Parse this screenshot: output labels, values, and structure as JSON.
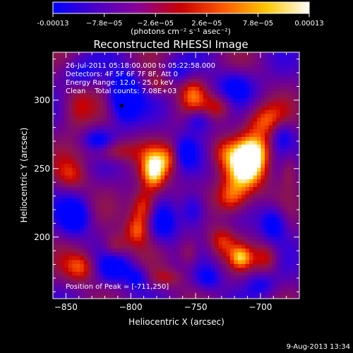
{
  "colorbar": {
    "ticks": [
      "-0.00013",
      "−7.8e−05",
      "−2.6e−05",
      "2.6e−05",
      "7.8e−05",
      "0.00013"
    ],
    "units": "(photons cm⁻² s⁻¹ asec⁻²)",
    "colors": [
      "#0000ff",
      "#4b00c8",
      "#8c0096",
      "#c80000",
      "#ff5a00",
      "#ffc800",
      "#ffffff"
    ]
  },
  "chart_data": {
    "type": "heatmap",
    "title": "Reconstructed RHESSI Image",
    "xlabel": "Heliocentric X (arcsec)",
    "ylabel": "Heliocentric Y (arcsec)",
    "xlim": [
      -860,
      -670
    ],
    "ylim": [
      155,
      335
    ],
    "x_ticks": [
      -850,
      -800,
      -750,
      -700
    ],
    "y_ticks": [
      200,
      250,
      300
    ],
    "info_lines": [
      "26-Jul-2011 05:18:00.000 to 05:22:58.000",
      "Detectors: 4F 5F 6F 7F 8F, Att 0",
      "Energy Range: 12.0 - 25.0 keV",
      "Clean    Total counts: 7.08E+03"
    ],
    "peak_label": "Position of Peak = [-711,250]",
    "peak": [
      -711,
      250
    ],
    "minimum_marker": [
      -807,
      296
    ],
    "blobs": [
      {
        "x": -711,
        "y": 250,
        "sx": 11,
        "sy": 13,
        "a": 1.0
      },
      {
        "x": -703,
        "y": 263,
        "sx": 9,
        "sy": 9,
        "a": 0.55
      },
      {
        "x": -722,
        "y": 228,
        "sx": 9,
        "sy": 9,
        "a": 0.7
      },
      {
        "x": -697,
        "y": 285,
        "sx": 12,
        "sy": 9,
        "a": 0.6
      },
      {
        "x": -730,
        "y": 262,
        "sx": 8,
        "sy": 8,
        "a": 0.35
      },
      {
        "x": -782,
        "y": 248,
        "sx": 7,
        "sy": 11,
        "a": 0.9
      },
      {
        "x": -790,
        "y": 222,
        "sx": 7,
        "sy": 9,
        "a": 0.75
      },
      {
        "x": -795,
        "y": 205,
        "sx": 7,
        "sy": 8,
        "a": 0.6
      },
      {
        "x": -815,
        "y": 263,
        "sx": 14,
        "sy": 6,
        "a": 0.55
      },
      {
        "x": -770,
        "y": 258,
        "sx": 6,
        "sy": 8,
        "a": 0.45
      },
      {
        "x": -842,
        "y": 295,
        "sx": 9,
        "sy": 12,
        "a": 0.5
      },
      {
        "x": -846,
        "y": 245,
        "sx": 9,
        "sy": 8,
        "a": 0.45
      },
      {
        "x": -752,
        "y": 305,
        "sx": 7,
        "sy": 9,
        "a": 0.5
      },
      {
        "x": -732,
        "y": 295,
        "sx": 8,
        "sy": 7,
        "a": 0.45
      },
      {
        "x": -778,
        "y": 312,
        "sx": 8,
        "sy": 6,
        "a": 0.4
      },
      {
        "x": -755,
        "y": 188,
        "sx": 6,
        "sy": 8,
        "a": 0.45
      },
      {
        "x": -730,
        "y": 197,
        "sx": 8,
        "sy": 8,
        "a": 0.5
      },
      {
        "x": -715,
        "y": 185,
        "sx": 6,
        "sy": 6,
        "a": 0.6
      },
      {
        "x": -695,
        "y": 185,
        "sx": 7,
        "sy": 8,
        "a": 0.5
      },
      {
        "x": -838,
        "y": 178,
        "sx": 9,
        "sy": 8,
        "a": 0.6
      },
      {
        "x": -812,
        "y": 193,
        "sx": 7,
        "sy": 7,
        "a": 0.45
      },
      {
        "x": -772,
        "y": 170,
        "sx": 10,
        "sy": 5,
        "a": 0.35
      },
      {
        "x": -678,
        "y": 250,
        "sx": 5,
        "sy": 10,
        "a": 0.4
      },
      {
        "x": -805,
        "y": 302,
        "sx": 8,
        "sy": 12,
        "a": -1.0
      },
      {
        "x": -825,
        "y": 270,
        "sx": 8,
        "sy": 6,
        "a": -0.55
      },
      {
        "x": -843,
        "y": 215,
        "sx": 8,
        "sy": 9,
        "a": -0.7
      },
      {
        "x": -812,
        "y": 178,
        "sx": 9,
        "sy": 7,
        "a": -0.6
      },
      {
        "x": -775,
        "y": 210,
        "sx": 8,
        "sy": 10,
        "a": -0.55
      },
      {
        "x": -752,
        "y": 220,
        "sx": 7,
        "sy": 9,
        "a": -0.6
      },
      {
        "x": -758,
        "y": 262,
        "sx": 6,
        "sy": 8,
        "a": -0.45
      },
      {
        "x": -748,
        "y": 285,
        "sx": 7,
        "sy": 6,
        "a": -0.5
      },
      {
        "x": -720,
        "y": 310,
        "sx": 10,
        "sy": 8,
        "a": -0.5
      },
      {
        "x": -690,
        "y": 210,
        "sx": 7,
        "sy": 9,
        "a": -0.65
      },
      {
        "x": -683,
        "y": 275,
        "sx": 6,
        "sy": 8,
        "a": -0.45
      },
      {
        "x": -740,
        "y": 170,
        "sx": 7,
        "sy": 6,
        "a": -0.45
      },
      {
        "x": -700,
        "y": 165,
        "sx": 8,
        "sy": 6,
        "a": -0.4
      },
      {
        "x": -840,
        "y": 320,
        "sx": 9,
        "sy": 7,
        "a": -0.45
      },
      {
        "x": -795,
        "y": 170,
        "sx": 6,
        "sy": 6,
        "a": -0.5
      },
      {
        "x": -765,
        "y": 320,
        "sx": 8,
        "sy": 6,
        "a": -0.35
      }
    ]
  },
  "footer": {
    "date": "9-Aug-2013 13:34"
  }
}
